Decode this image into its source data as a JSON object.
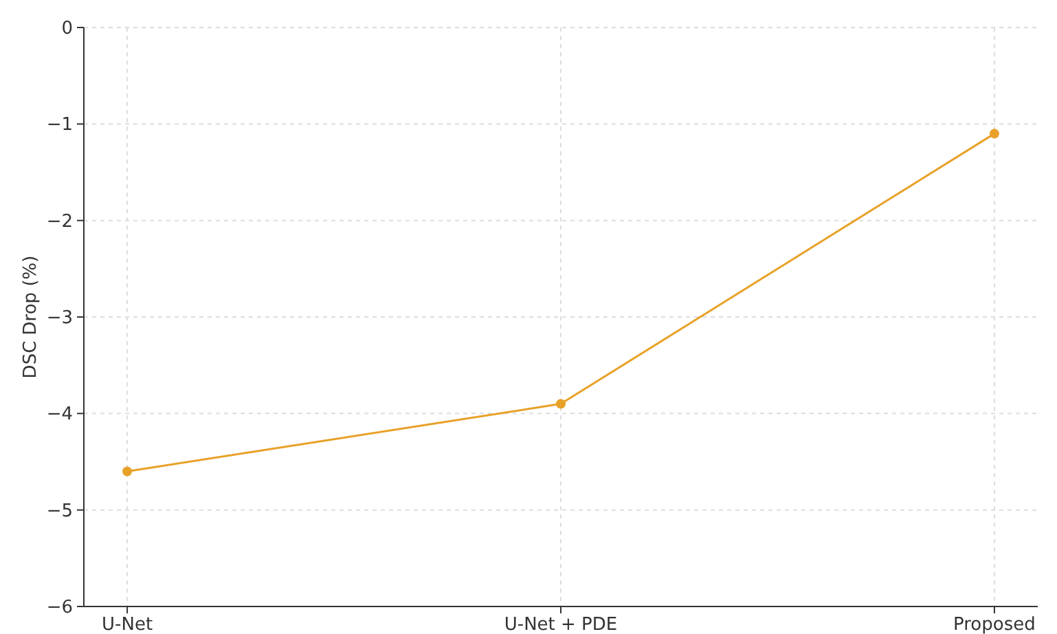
{
  "chart_data": {
    "type": "line",
    "ylabel": "DSC Drop (%)",
    "categories": [
      "U-Net",
      "U-Net + PDE",
      "Proposed"
    ],
    "series": [
      {
        "color": "#e8a128",
        "values": [
          -4.6,
          -3.9,
          -1.1
        ]
      }
    ],
    "ylim": [
      -6,
      0
    ],
    "yticks": [
      {
        "value": -6,
        "label": "−6"
      },
      {
        "value": -5,
        "label": "−5"
      },
      {
        "value": -4,
        "label": "−4"
      },
      {
        "value": -3,
        "label": "−3"
      },
      {
        "value": -2,
        "label": "−2"
      },
      {
        "value": -1,
        "label": "−1"
      },
      0
    ],
    "grid": true,
    "marker": "circle",
    "line_style": "solid"
  }
}
